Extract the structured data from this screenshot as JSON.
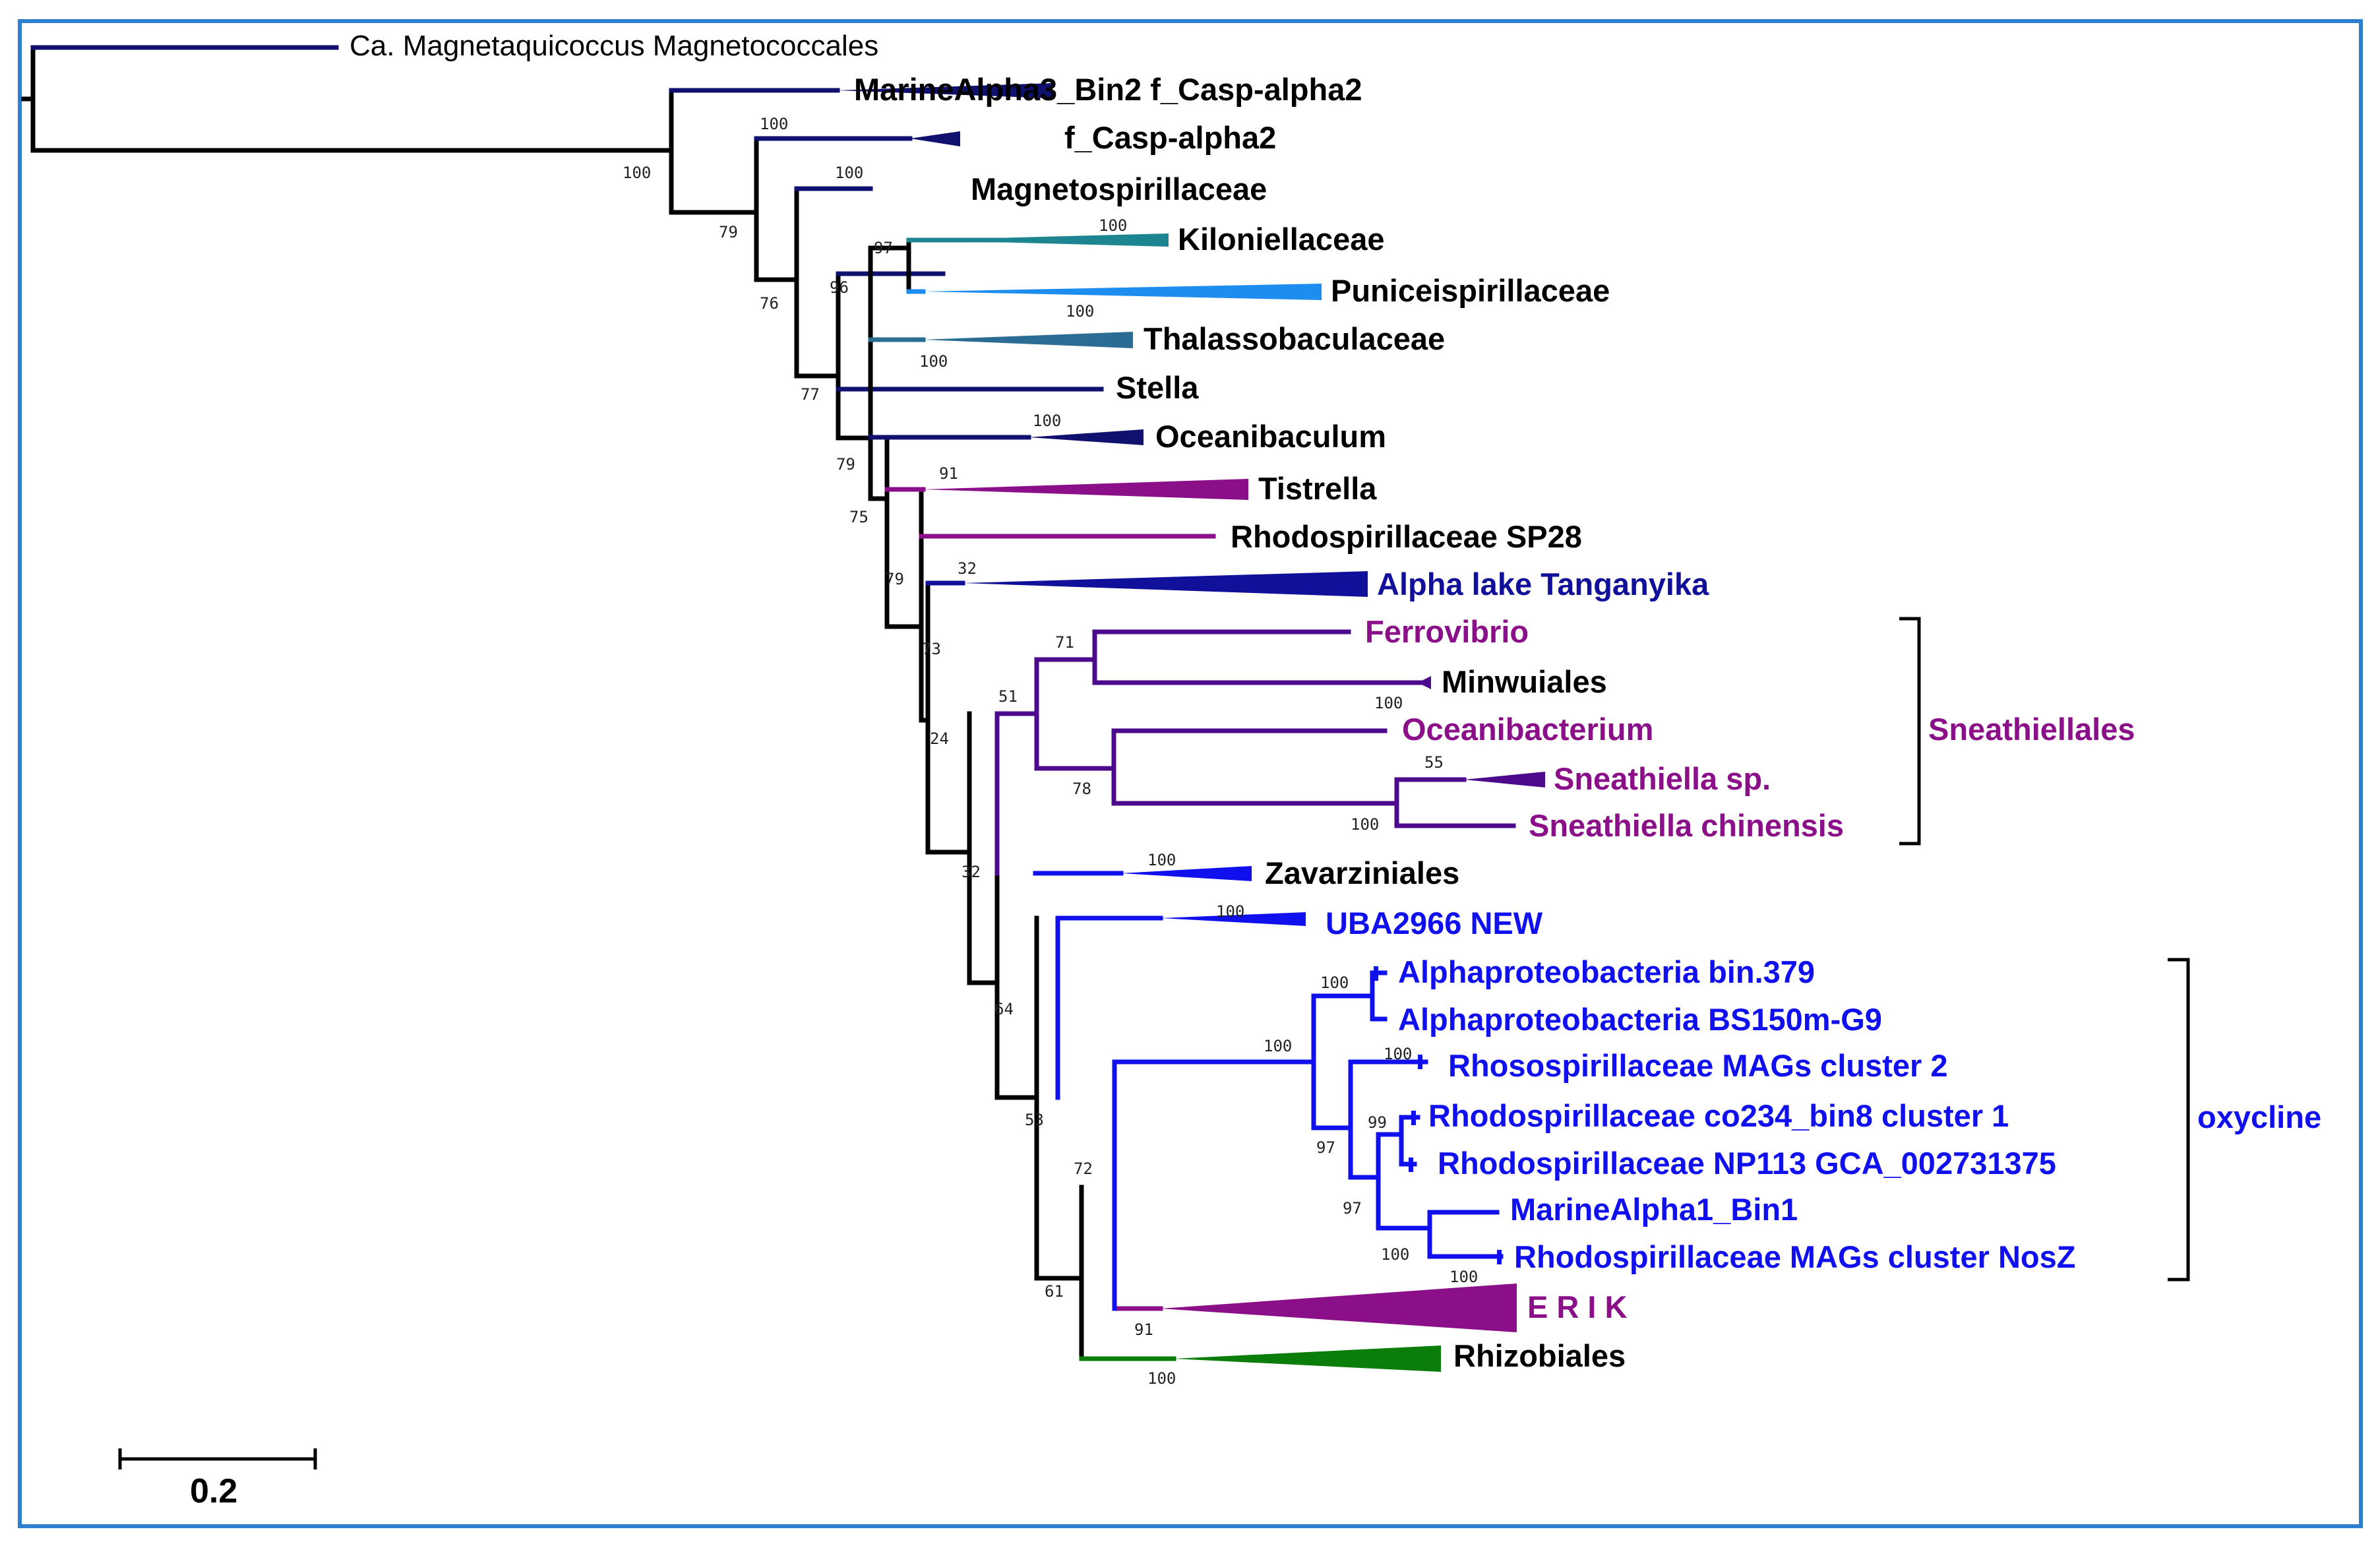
{
  "colors": {
    "frame": "#2f7fd0",
    "black": "#000000",
    "navy": "#10106e",
    "teal": "#1d8590",
    "sky": "#1d8ef0",
    "steel": "#2a6c94",
    "purple": "#8a0f88",
    "violet": "#4d0a8c",
    "blue": "#1010ee",
    "royal": "#10109a",
    "green": "#0a7d0a"
  },
  "taxa": {
    "magnetaquicoccus": "Ca. Magnetaquicoccus Magnetococcales",
    "marinealpha3": "MarineAlpha3_Bin2 f_Casp-alpha2",
    "casp_alpha2": "f_Casp-alpha2",
    "magnetospirillaceae": "Magnetospirillaceae",
    "kiloniellaceae": "Kiloniellaceae",
    "puniceispirillaceae": "Puniceispirillaceae",
    "thalassobaculaceae": "Thalassobaculaceae",
    "stella": "Stella",
    "oceanibaculum": "Oceanibaculum",
    "tistrella": "Tistrella",
    "rhodo_sp28": "Rhodospirillaceae SP28",
    "alpha_tanganyika": "Alpha lake Tanganyika",
    "ferrovibrio": "Ferrovibrio",
    "minwuiales": "Minwuiales",
    "oceanibacterium": "Oceanibacterium",
    "sneathiella_sp": "Sneathiella sp.",
    "sneathiella_chinensis": "Sneathiella chinensis",
    "zavarziniales": "Zavarziniales",
    "uba2966": "UBA2966 NEW",
    "alpha_bin379": "Alphaproteobacteria bin.379",
    "alpha_bs150": "Alphaproteobacteria BS150m-G9",
    "rhoso_cluster2": "Rhosospirillaceae MAGs cluster 2",
    "rhodo_co234": "Rhodospirillaceae co234_bin8 cluster 1",
    "rhodo_np113": "Rhodospirillaceae NP113 GCA_002731375",
    "marinealpha1": "MarineAlpha1_Bin1",
    "rhodo_nosz": "Rhodospirillaceae MAGs cluster NosZ",
    "erik": "E R I K",
    "rhizobiales": "Rhizobiales"
  },
  "groups": {
    "sneathiellales": "Sneathiellales",
    "oxycline": "oxycline"
  },
  "supports": {
    "s_root": "100",
    "s_casp": "100",
    "s_79a": "79",
    "s_magneto": "100",
    "s_76": "76",
    "s_97": "97",
    "s_kilo": "100",
    "s_96": "96",
    "s_punic": "100",
    "s_thal": "100",
    "s_77": "77",
    "s_ocb": "100",
    "s_79b": "79",
    "s_91": "91",
    "s_75": "75",
    "s_32a": "32",
    "s_79c": "79",
    "s_73": "73",
    "s_24": "24",
    "s_71": "71",
    "s_minw": "100",
    "s_51": "51",
    "s_55": "55",
    "s_78": "78",
    "s_sneath": "100",
    "s_32b": "32",
    "s_zav": "100",
    "s_uba": "100",
    "s_64": "64",
    "s_alpha": "100",
    "s_oxy": "100",
    "s_cl2": "100",
    "s_53": "53",
    "s_99": "99",
    "s_97b": "97",
    "s_97c": "97",
    "s_72": "72",
    "s_nosz": "100",
    "s_erik": "100",
    "s_61": "61",
    "s_91b": "91",
    "s_rhiz": "100"
  },
  "scale_bar": {
    "label": "0.2"
  }
}
